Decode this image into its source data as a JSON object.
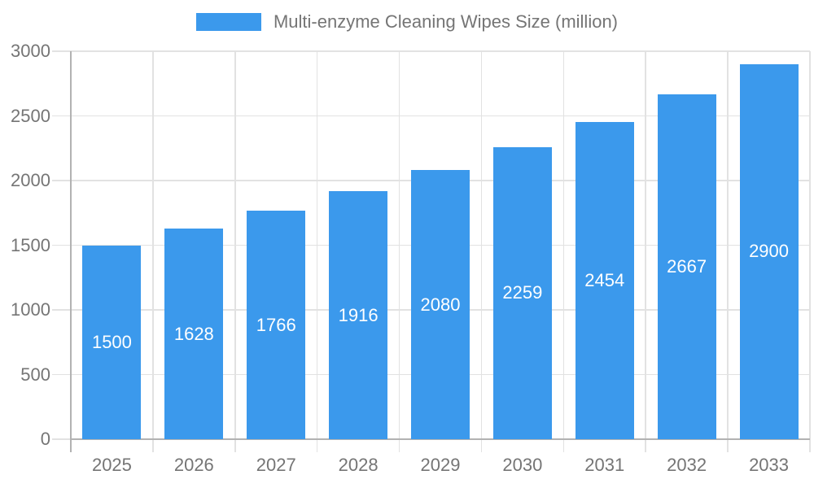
{
  "chart_data": {
    "type": "bar",
    "title": "",
    "legend": "Multi-enzyme Cleaning Wipes Size (million)",
    "legend_position": "top",
    "categories": [
      "2025",
      "2026",
      "2027",
      "2028",
      "2029",
      "2030",
      "2031",
      "2032",
      "2033"
    ],
    "values": [
      1500,
      1628,
      1766,
      1916,
      2080,
      2259,
      2454,
      2667,
      2900
    ],
    "xlabel": "",
    "ylabel": "",
    "ylim": [
      0,
      3000
    ],
    "ytick_step": 500,
    "ytick_labels": [
      "0",
      "500",
      "1000",
      "1500",
      "2000",
      "2500",
      "3000"
    ],
    "grid": "horizontal and vertical, light gray",
    "value_labels": "centered inside bars",
    "colors": {
      "bar": "#3b99ec",
      "value_label": "#ffffff",
      "axis_text": "#757575",
      "axis_line": "#b2b2b2",
      "gridline": "#e2e2e2"
    }
  }
}
